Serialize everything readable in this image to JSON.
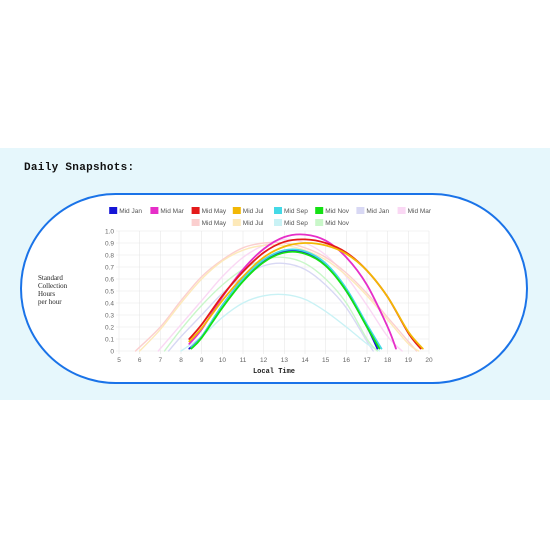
{
  "heading": "Daily Snapshots:",
  "chart_data": {
    "type": "line",
    "title": "",
    "xlabel": "Local Time",
    "ylabel_lines": [
      "Standard",
      "Collection",
      "Hours",
      "per hour"
    ],
    "xlim": [
      5,
      20
    ],
    "ylim": [
      0,
      1.0
    ],
    "x_ticks": [
      "5",
      "6",
      "7",
      "8",
      "9",
      "10",
      "11",
      "12",
      "13",
      "14",
      "15",
      "16",
      "17",
      "18",
      "19",
      "20"
    ],
    "y_ticks": [
      "0",
      "0.1",
      "0.2",
      "0.3",
      "0.4",
      "0.5",
      "0.6",
      "0.7",
      "0.8",
      "0.9",
      "1.0"
    ],
    "grid": true,
    "legend_position": "top",
    "series": [
      {
        "name": "Mid Jan",
        "color": "#1515d6",
        "faded": false,
        "x": [
          8.4,
          9,
          10,
          11,
          12,
          13,
          14,
          15,
          16,
          17,
          17.5
        ],
        "y": [
          0.02,
          0.12,
          0.38,
          0.6,
          0.75,
          0.83,
          0.82,
          0.72,
          0.5,
          0.2,
          0.02
        ]
      },
      {
        "name": "Mid Mar",
        "color": "#e62ec8",
        "faded": false,
        "x": [
          8.4,
          9,
          10,
          11,
          12,
          13,
          14,
          15,
          16,
          17,
          18,
          18.4
        ],
        "y": [
          0.06,
          0.18,
          0.45,
          0.68,
          0.85,
          0.95,
          0.97,
          0.92,
          0.78,
          0.55,
          0.2,
          0.02
        ]
      },
      {
        "name": "Mid May",
        "color": "#e41a1a",
        "faded": false,
        "x": [
          8.4,
          9,
          10,
          11,
          12,
          13,
          14,
          15,
          16,
          17,
          18,
          19,
          19.6
        ],
        "y": [
          0.1,
          0.22,
          0.46,
          0.66,
          0.82,
          0.91,
          0.93,
          0.9,
          0.82,
          0.67,
          0.45,
          0.15,
          0.02
        ]
      },
      {
        "name": "Mid Jul",
        "color": "#f2b705",
        "faded": false,
        "x": [
          8.4,
          9,
          10,
          11,
          12,
          13,
          14,
          15,
          16,
          17,
          18,
          19,
          19.7
        ],
        "y": [
          0.08,
          0.19,
          0.42,
          0.62,
          0.78,
          0.87,
          0.9,
          0.88,
          0.81,
          0.67,
          0.45,
          0.16,
          0.02
        ]
      },
      {
        "name": "Mid Sep",
        "color": "#44d9e6",
        "faded": false,
        "x": [
          8.5,
          9,
          10,
          11,
          12,
          13,
          14,
          15,
          16,
          17,
          17.7
        ],
        "y": [
          0.03,
          0.12,
          0.38,
          0.6,
          0.76,
          0.84,
          0.83,
          0.73,
          0.52,
          0.22,
          0.02
        ]
      },
      {
        "name": "Mid Nov",
        "color": "#14e014",
        "faded": false,
        "x": [
          8.5,
          9,
          10,
          11,
          12,
          13,
          14,
          15,
          16,
          17,
          17.6
        ],
        "y": [
          0.02,
          0.11,
          0.36,
          0.58,
          0.74,
          0.82,
          0.81,
          0.71,
          0.5,
          0.2,
          0.02
        ]
      },
      {
        "name": "Mid Jan",
        "color": "#d8d8f4",
        "faded": true,
        "x": [
          7.4,
          8,
          9,
          10,
          11,
          12,
          13,
          14,
          15,
          16,
          17,
          17.3
        ],
        "y": [
          0.0,
          0.12,
          0.3,
          0.48,
          0.62,
          0.71,
          0.73,
          0.68,
          0.55,
          0.36,
          0.08,
          0.0
        ]
      },
      {
        "name": "Mid Mar",
        "color": "#fad8f4",
        "faded": true,
        "x": [
          6.9,
          8,
          9,
          10,
          11,
          12,
          13,
          14,
          15,
          16,
          17,
          18,
          18.7
        ],
        "y": [
          0.0,
          0.22,
          0.42,
          0.62,
          0.78,
          0.88,
          0.93,
          0.9,
          0.8,
          0.62,
          0.38,
          0.12,
          0.0
        ]
      },
      {
        "name": "Mid May",
        "color": "#fbcfcf",
        "faded": true,
        "x": [
          5.8,
          7,
          8,
          9,
          10,
          11,
          12,
          13,
          14,
          15,
          16,
          17,
          18,
          19,
          19.4
        ],
        "y": [
          0.0,
          0.2,
          0.42,
          0.62,
          0.76,
          0.86,
          0.9,
          0.9,
          0.86,
          0.78,
          0.65,
          0.48,
          0.28,
          0.08,
          0.0
        ]
      },
      {
        "name": "Mid Jul",
        "color": "#fde9b9",
        "faded": true,
        "x": [
          6.0,
          7,
          8,
          9,
          10,
          11,
          12,
          13,
          14,
          15,
          16,
          17,
          18,
          19,
          19.5
        ],
        "y": [
          0.0,
          0.18,
          0.4,
          0.6,
          0.75,
          0.84,
          0.88,
          0.88,
          0.84,
          0.76,
          0.63,
          0.46,
          0.26,
          0.06,
          0.0
        ]
      },
      {
        "name": "Mid Sep",
        "color": "#c9f2f5",
        "faded": true,
        "x": [
          8.0,
          9,
          10,
          11,
          12,
          13,
          14,
          15,
          16,
          17,
          17.6
        ],
        "y": [
          0.0,
          0.12,
          0.28,
          0.4,
          0.46,
          0.47,
          0.43,
          0.33,
          0.2,
          0.06,
          0.0
        ]
      },
      {
        "name": "Mid Nov",
        "color": "#c9f7c9",
        "faded": true,
        "x": [
          7.2,
          8,
          9,
          10,
          11,
          12,
          13,
          14,
          15,
          16,
          17,
          17.5
        ],
        "y": [
          0.0,
          0.18,
          0.38,
          0.55,
          0.68,
          0.76,
          0.78,
          0.73,
          0.6,
          0.4,
          0.1,
          0.0
        ]
      }
    ]
  }
}
